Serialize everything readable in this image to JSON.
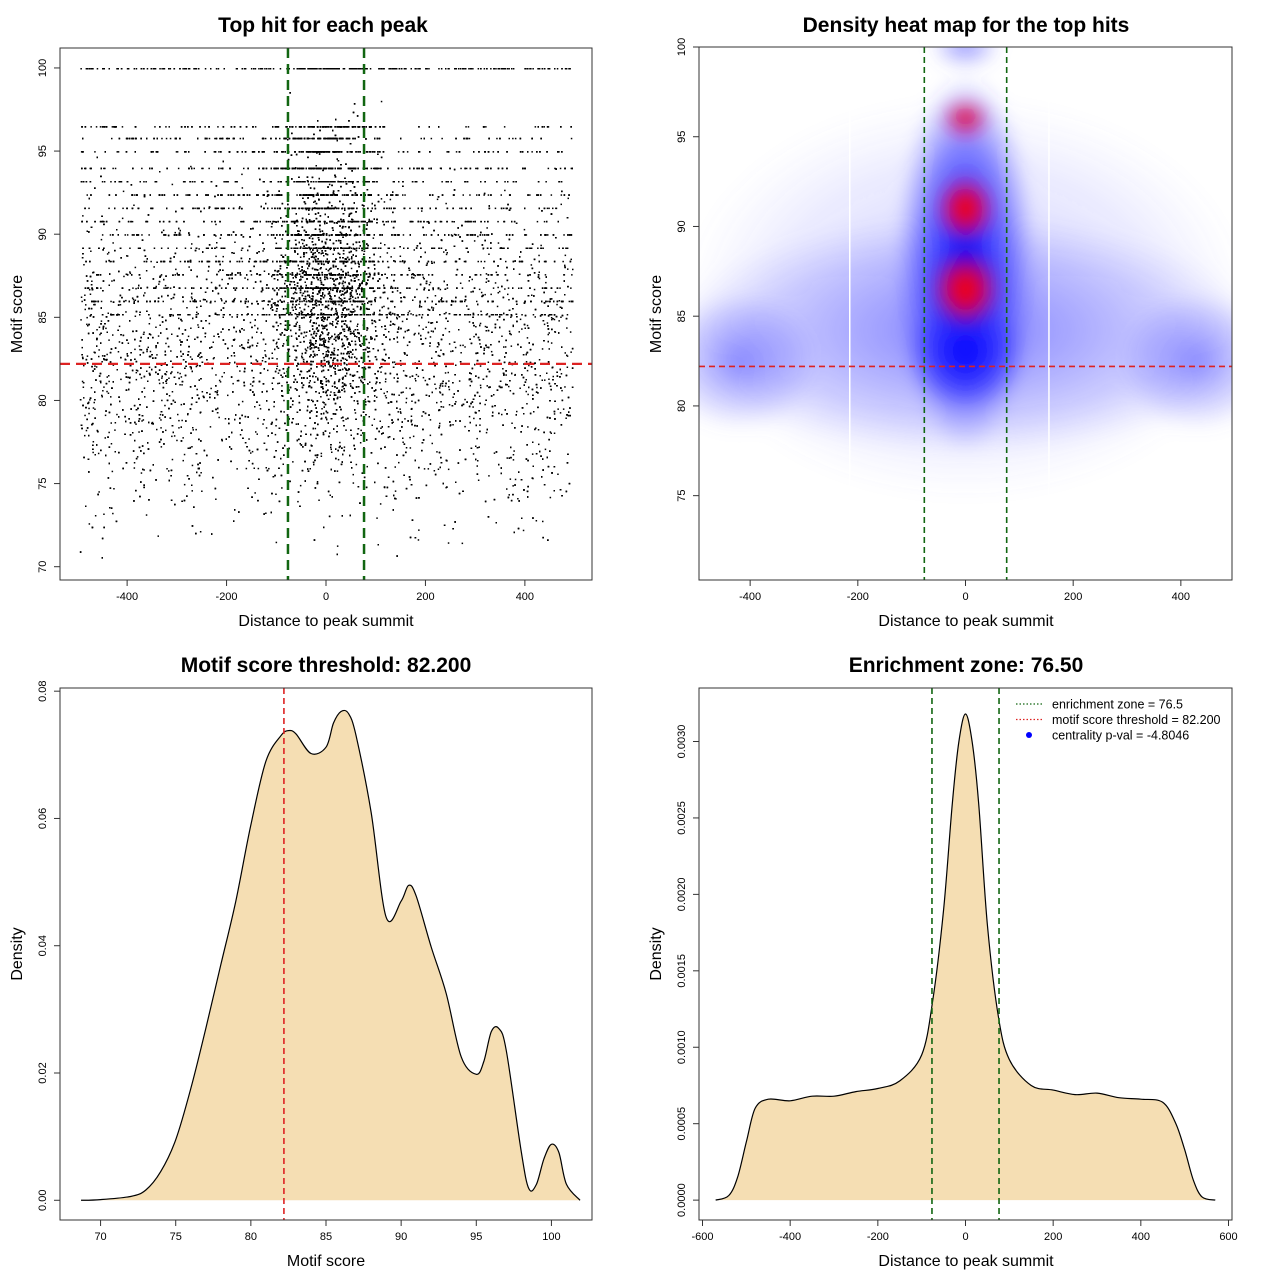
{
  "chart_data": [
    {
      "id": "scatter",
      "type": "scatter",
      "title": "Top hit for each peak",
      "xlabel": "Distance to peak summit",
      "ylabel": "Motif score",
      "xlim": [
        -535,
        535
      ],
      "ylim": [
        69.2,
        101.2
      ],
      "xticks": [
        -400,
        -200,
        0,
        200,
        400
      ],
      "yticks": [
        70,
        75,
        80,
        85,
        90,
        95,
        100
      ],
      "threshold": 82.2,
      "zone": [
        -76.5,
        76.5
      ],
      "grid": false,
      "colors": {
        "points": "#000000",
        "threshold": "#dd2222",
        "zone": "#116611"
      },
      "note": "~15,000 points; x spans -500..500, scores 70..100, concentrated near 0 and 80-90"
    },
    {
      "id": "heat",
      "type": "heatmap",
      "title": "Density heat map for the top hits",
      "xlabel": "Distance to peak summit",
      "ylabel": "Motif score",
      "xlim": [
        -495,
        495
      ],
      "ylim": [
        70.3,
        100
      ],
      "xticks": [
        -400,
        -200,
        0,
        200,
        400
      ],
      "yticks": [
        75,
        80,
        85,
        90,
        95,
        100
      ],
      "threshold": 82.2,
      "zone": [
        -76.5,
        76.5
      ],
      "colors": {
        "low": "#ffffff",
        "mid": "#0000ff",
        "high": "#ff0000",
        "threshold": "#dd2222",
        "zone": "#116611"
      },
      "hotspots": [
        {
          "x": 0,
          "y": 86.5,
          "level": "max"
        },
        {
          "x": 0,
          "y": 91,
          "level": "high"
        },
        {
          "x": 0,
          "y": 96,
          "level": "medium"
        }
      ]
    },
    {
      "id": "score_density",
      "type": "area",
      "title": "Motif score threshold: 82.200",
      "xlabel": "Motif score",
      "ylabel": "Density",
      "xlim": [
        67.3,
        102.7
      ],
      "ylim": [
        -0.0031,
        0.0805
      ],
      "xticks": [
        70,
        75,
        80,
        85,
        90,
        95,
        100
      ],
      "yticks": [
        0.0,
        0.02,
        0.04,
        0.06,
        0.08
      ],
      "ytick_labels": [
        "0.00",
        "0.02",
        "0.04",
        "0.06",
        "0.08"
      ],
      "threshold": 82.2,
      "x": [
        68.7,
        70,
        72,
        73,
        74,
        75,
        76,
        77,
        78,
        79,
        80,
        81,
        82,
        82.5,
        83,
        84,
        85,
        85.5,
        86,
        86.5,
        87,
        88,
        89,
        90,
        90.5,
        91,
        92,
        93,
        94,
        95,
        95.5,
        96,
        96.5,
        97,
        98,
        98.5,
        99,
        99.5,
        100,
        100.5,
        101,
        101.9
      ],
      "y": [
        0,
        0.0001,
        0.0006,
        0.0016,
        0.0045,
        0.0095,
        0.0175,
        0.027,
        0.037,
        0.047,
        0.059,
        0.069,
        0.073,
        0.0738,
        0.0733,
        0.0702,
        0.0712,
        0.075,
        0.0768,
        0.0765,
        0.073,
        0.061,
        0.0445,
        0.047,
        0.0495,
        0.0478,
        0.0398,
        0.0325,
        0.0225,
        0.0198,
        0.0218,
        0.0265,
        0.027,
        0.0235,
        0.0075,
        0.0018,
        0.0025,
        0.0065,
        0.0088,
        0.0075,
        0.0025,
        0
      ],
      "colors": {
        "fill": "#f5deb3",
        "line": "#000000",
        "threshold": "#dd2222"
      }
    },
    {
      "id": "distance_density",
      "type": "area",
      "title": "Enrichment zone: 76.50",
      "xlabel": "Distance to peak summit",
      "ylabel": "Density",
      "xlim": [
        -608,
        608
      ],
      "ylim": [
        -0.00013,
        0.00335
      ],
      "xticks": [
        -600,
        -400,
        -200,
        0,
        200,
        400,
        600
      ],
      "yticks": [
        0.0,
        0.0005,
        0.001,
        0.0015,
        0.002,
        0.0025,
        0.003
      ],
      "ytick_labels": [
        "0.0000",
        "0.0005",
        "0.0010",
        "0.0015",
        "0.0020",
        "0.0025",
        "0.0030"
      ],
      "zone": [
        -76.5,
        76.5
      ],
      "x": [
        -570,
        -540,
        -520,
        -500,
        -480,
        -450,
        -400,
        -350,
        -300,
        -250,
        -200,
        -150,
        -100,
        -75,
        -50,
        -30,
        -15,
        0,
        15,
        30,
        50,
        75,
        100,
        150,
        200,
        250,
        300,
        350,
        400,
        450,
        480,
        500,
        520,
        540,
        570
      ],
      "y": [
        0,
        3e-05,
        0.00015,
        0.00038,
        0.0006,
        0.00066,
        0.00065,
        0.00068,
        0.00068,
        0.00071,
        0.00073,
        0.00078,
        0.00095,
        0.0013,
        0.0019,
        0.0026,
        0.003,
        0.00318,
        0.003,
        0.0026,
        0.0018,
        0.0012,
        0.00092,
        0.00075,
        0.00072,
        0.00069,
        0.0007,
        0.00067,
        0.00066,
        0.00064,
        0.0005,
        0.00033,
        0.00013,
        2e-05,
        0
      ],
      "colors": {
        "fill": "#f5deb3",
        "line": "#000000",
        "zone": "#116611"
      },
      "legend": {
        "position": "top-right",
        "entries": [
          {
            "label": "enrichment zone = 76.5",
            "style": "dotted",
            "color": "#116611"
          },
          {
            "label": "motif score threshold = 82.200",
            "style": "dotted",
            "color": "#dd2222"
          },
          {
            "label": "centrality p-val = -4.8046",
            "style": "point",
            "color": "#0000ff"
          }
        ]
      }
    }
  ]
}
